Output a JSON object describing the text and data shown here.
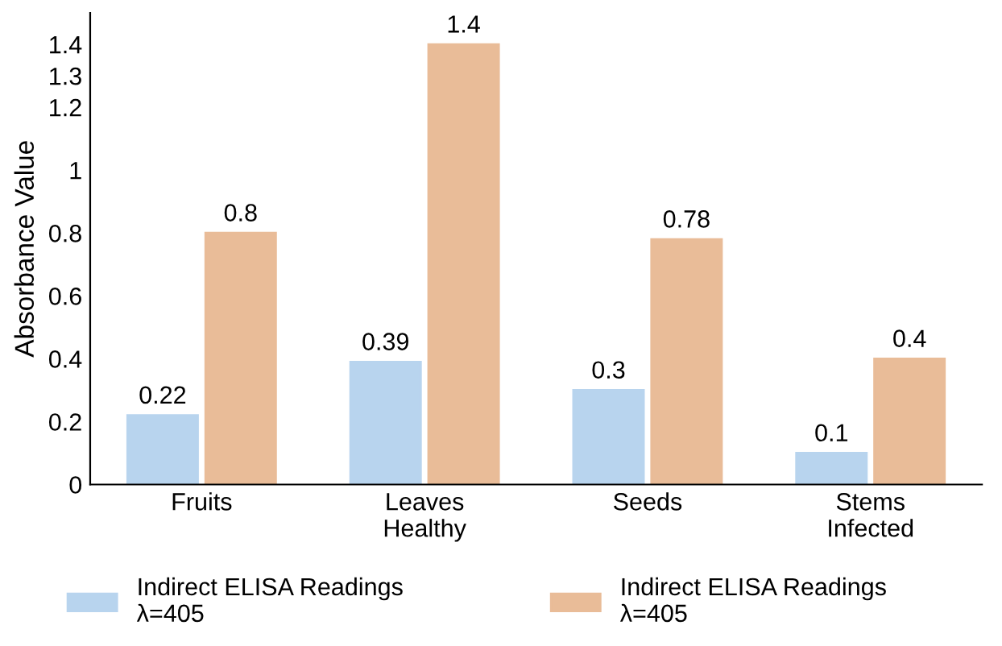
{
  "chart_data": {
    "type": "bar",
    "ylabel": "Absorbance Value",
    "categories": [
      "Fruits",
      "Leaves\nHealthy",
      "Seeds",
      "Stems\nInfected"
    ],
    "series": [
      {
        "name": "Indirect ELISA Readings\nλ=405",
        "color": "#b8d4ee",
        "values": [
          0.22,
          0.39,
          0.3,
          0.1
        ]
      },
      {
        "name": "Indirect ELISA Readings\nλ=405",
        "color": "#e9bc98",
        "values": [
          0.8,
          1.4,
          0.78,
          0.4
        ]
      }
    ],
    "ylim": [
      0,
      1.5
    ],
    "yticks": [
      0,
      0.2,
      0.4,
      0.6,
      0.8,
      1,
      1.2,
      1.3,
      1.4
    ],
    "data_labels": true,
    "grid": false,
    "legend": "bottom"
  }
}
